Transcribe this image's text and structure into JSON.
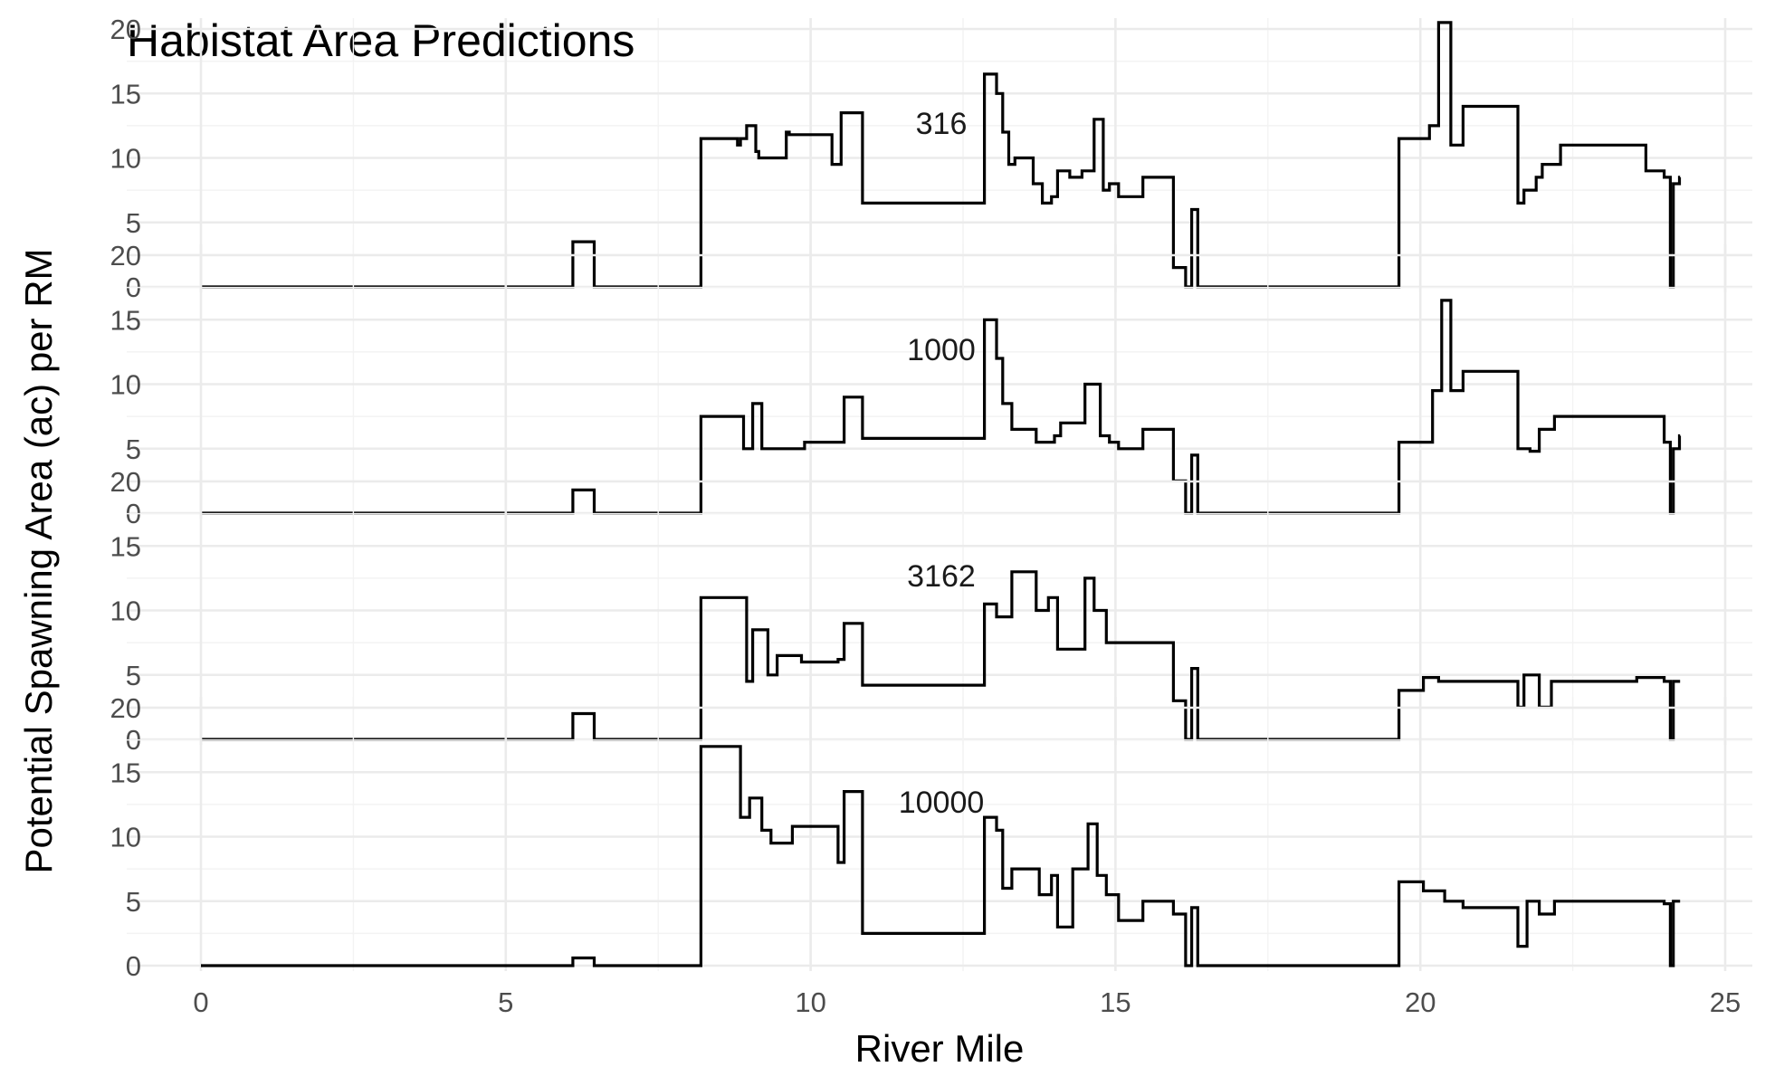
{
  "chart_data": {
    "type": "line",
    "title": "Habistat Area Predictions",
    "xlabel": "River Mile",
    "ylabel": "Potential Spawning Area (ac) per RM",
    "xlim": [
      0,
      25
    ],
    "ylim": [
      0,
      20
    ],
    "x_ticks": [
      "0",
      "5",
      "10",
      "15",
      "20",
      "25"
    ],
    "y_ticks": [
      "0",
      "5",
      "10",
      "15",
      "20"
    ],
    "grid": true,
    "step": true,
    "panels": [
      {
        "label": "316",
        "x": [
          0,
          6.1,
          6.45,
          8.2,
          8.8,
          8.85,
          8.95,
          9.1,
          9.15,
          9.6,
          9.65,
          10.35,
          10.5,
          10.85,
          12.85,
          13.05,
          13.15,
          13.25,
          13.35,
          13.5,
          13.65,
          13.8,
          13.95,
          14.05,
          14.25,
          14.45,
          14.65,
          14.8,
          14.9,
          15.05,
          15.45,
          15.95,
          16.15,
          16.25,
          16.35,
          19.65,
          20.15,
          20.3,
          20.5,
          20.7,
          21.6,
          21.7,
          21.9,
          22.0,
          22.3,
          22.45,
          23.7,
          24.0,
          24.1,
          24.15,
          24.25
        ],
        "y": [
          0,
          3.5,
          0,
          11.5,
          11,
          11.5,
          12.5,
          10.5,
          10,
          12,
          11.8,
          9.5,
          13.5,
          6.5,
          16.5,
          15,
          12,
          9.5,
          10,
          10,
          8,
          6.5,
          7,
          9,
          8.5,
          9,
          13,
          7.5,
          8,
          7,
          8.5,
          1.5,
          0,
          6,
          0,
          11.5,
          12.5,
          20.5,
          11,
          14,
          6.5,
          7.5,
          8.5,
          9.5,
          11,
          11,
          9,
          8.5,
          0,
          8,
          8.5
        ]
      },
      {
        "label": "1000",
        "x": [
          0,
          6.1,
          6.45,
          8.2,
          8.8,
          8.9,
          9.05,
          9.2,
          9.9,
          10.4,
          10.55,
          10.85,
          12.85,
          13.05,
          13.15,
          13.3,
          13.7,
          14.0,
          14.1,
          14.5,
          14.75,
          14.9,
          15.05,
          15.45,
          15.95,
          16.15,
          16.25,
          16.35,
          19.65,
          20.2,
          20.35,
          20.5,
          20.7,
          21.6,
          21.8,
          21.95,
          22.2,
          23.55,
          24.0,
          24.1,
          24.15,
          24.25
        ],
        "y": [
          0,
          1.8,
          0,
          7.5,
          7.5,
          5,
          8.5,
          5,
          5.5,
          5.5,
          9,
          5.8,
          15,
          12,
          8.5,
          6.5,
          5.5,
          6,
          7,
          10,
          6,
          5.5,
          5,
          6.5,
          2.5,
          0,
          4.5,
          0,
          5.5,
          9.5,
          16.5,
          9.5,
          11,
          5,
          4.8,
          6.5,
          7.5,
          7.5,
          5.5,
          0,
          5,
          6
        ]
      },
      {
        "label": "3162",
        "x": [
          0,
          6.1,
          6.45,
          8.2,
          8.85,
          8.95,
          9.05,
          9.3,
          9.45,
          9.85,
          10.45,
          10.55,
          10.85,
          12.85,
          13.05,
          13.3,
          13.7,
          13.9,
          14.05,
          14.5,
          14.65,
          14.85,
          15.05,
          15.45,
          15.95,
          16.15,
          16.25,
          16.35,
          19.65,
          20.05,
          20.3,
          20.7,
          21.6,
          21.7,
          21.95,
          22.15,
          23.55,
          24.0,
          24.1,
          24.15,
          24.25
        ],
        "y": [
          0,
          2,
          0,
          11,
          11,
          4.5,
          8.5,
          5,
          6.5,
          6,
          6.2,
          9,
          4.2,
          10.5,
          9.5,
          13,
          10,
          11,
          7,
          12.5,
          10,
          7.5,
          7.5,
          7.5,
          3,
          0,
          5.5,
          0,
          3.8,
          4.8,
          4.5,
          4.5,
          2.5,
          5,
          2.5,
          4.5,
          4.8,
          4.5,
          0,
          4.5,
          4.5
        ]
      },
      {
        "label": "10000",
        "x": [
          0,
          6.1,
          6.45,
          8.2,
          8.85,
          9.0,
          9.2,
          9.35,
          9.7,
          10.45,
          10.55,
          10.85,
          12.85,
          13.05,
          13.15,
          13.3,
          13.75,
          13.95,
          14.05,
          14.3,
          14.55,
          14.7,
          14.85,
          15.05,
          15.45,
          15.95,
          16.15,
          16.25,
          16.35,
          19.65,
          20.05,
          20.4,
          20.7,
          21.6,
          21.75,
          21.95,
          22.2,
          23.6,
          24.0,
          24.1,
          24.15,
          24.25
        ],
        "y": [
          0,
          0.6,
          0,
          17,
          11.5,
          13,
          10.5,
          9.5,
          10.8,
          8,
          13.5,
          2.5,
          11.5,
          10.5,
          6,
          7.5,
          5.5,
          7,
          3,
          7.5,
          11,
          7,
          5.5,
          3.5,
          5,
          4,
          0,
          4.5,
          0,
          6.5,
          5.8,
          5,
          4.5,
          1.5,
          5,
          4,
          5,
          5,
          4.8,
          0,
          5,
          5
        ]
      }
    ]
  }
}
